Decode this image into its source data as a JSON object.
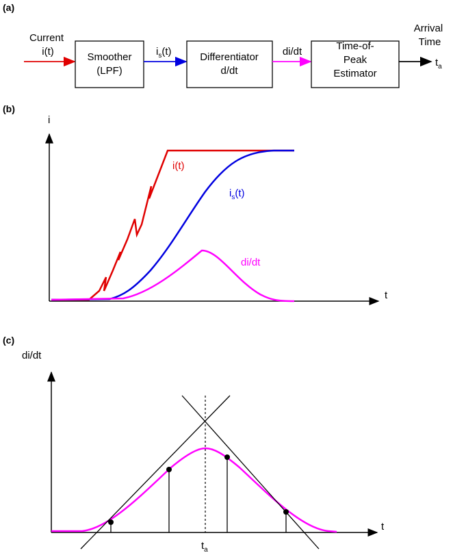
{
  "panel_a": {
    "label": "(a)",
    "input_label": [
      "Current",
      "i(t)"
    ],
    "blocks": [
      {
        "lines": [
          "Smoother",
          "(LPF)"
        ]
      },
      {
        "lines": [
          "Differentiator",
          "d/dt"
        ]
      },
      {
        "lines": [
          "Time-of-",
          "Peak",
          "Estimator"
        ]
      }
    ],
    "signal_1": {
      "base": "i",
      "sub": "s",
      "tail": "(t)"
    },
    "signal_2": "di/dt",
    "output_label": [
      "Arrival",
      "Time"
    ],
    "output_symbol": {
      "base": "t",
      "sub": "a"
    }
  },
  "panel_b": {
    "label": "(b)",
    "y_axis": "i",
    "x_axis": "t",
    "curves": [
      {
        "name": "i(t)"
      },
      {
        "name": {
          "base": "i",
          "sub": "s",
          "tail": "(t)"
        }
      },
      {
        "name": "di/dt"
      }
    ]
  },
  "panel_c": {
    "label": "(c)",
    "y_axis": "di/dt",
    "x_axis": "t",
    "marker": {
      "base": "t",
      "sub": "a"
    }
  }
}
